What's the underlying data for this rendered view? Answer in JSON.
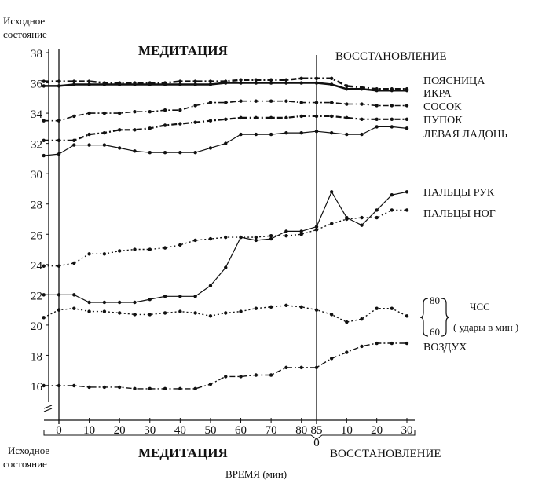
{
  "chart_data": {
    "type": "line",
    "xlabel": "ВРЕМЯ (мин)",
    "ylim": [
      14,
      38
    ],
    "yticks": [
      16,
      18,
      20,
      22,
      24,
      26,
      28,
      30,
      32,
      34,
      36,
      38
    ],
    "phases": {
      "baseline": "Исходное состояние",
      "baseline_line1": "Исходное",
      "baseline_line2": "состояние",
      "meditation": "МЕДИТАЦИЯ",
      "recovery": "ВОССТАНОВЛЕНИЕ"
    },
    "meditation_ticks": [
      0,
      10,
      20,
      30,
      40,
      50,
      60,
      70,
      80,
      85
    ],
    "recovery_ticks": [
      10,
      20,
      30
    ],
    "recovery_zero": "0",
    "timeline": [
      -5,
      0,
      5,
      10,
      15,
      20,
      25,
      30,
      35,
      40,
      45,
      50,
      55,
      60,
      65,
      70,
      75,
      80,
      85,
      90,
      95,
      100,
      105,
      110,
      115
    ],
    "hr_scale": {
      "top": "80",
      "bottom": "60",
      "label": "ЧСС",
      "unit": "( удары в мин )"
    },
    "series": [
      {
        "name": "ПОЯСНИЦА",
        "style": "dashdot",
        "stroke": 2.5,
        "values": [
          36.1,
          36.1,
          36.1,
          36.1,
          36.0,
          36.0,
          36.0,
          36.0,
          36.0,
          36.1,
          36.1,
          36.1,
          36.1,
          36.2,
          36.2,
          36.2,
          36.2,
          36.3,
          36.3,
          36.3,
          35.8,
          35.7,
          35.6,
          35.6,
          35.6
        ]
      },
      {
        "name": "ИКРА",
        "style": "solid",
        "stroke": 2.5,
        "values": [
          35.8,
          35.8,
          35.9,
          35.9,
          35.9,
          35.9,
          35.9,
          35.9,
          35.9,
          35.9,
          35.9,
          35.9,
          36.0,
          36.0,
          36.0,
          36.0,
          36.0,
          36.0,
          36.0,
          35.9,
          35.6,
          35.6,
          35.5,
          35.5,
          35.5
        ]
      },
      {
        "name": "СОСОК",
        "style": "dashdot",
        "stroke": 1.6,
        "values": [
          33.5,
          33.5,
          33.8,
          34.0,
          34.0,
          34.0,
          34.1,
          34.1,
          34.2,
          34.2,
          34.5,
          34.7,
          34.7,
          34.8,
          34.8,
          34.8,
          34.8,
          34.7,
          34.7,
          34.7,
          34.6,
          34.6,
          34.5,
          34.5,
          34.5
        ]
      },
      {
        "name": "ПУПОК",
        "style": "dashdot",
        "stroke": 2.2,
        "values": [
          32.2,
          32.2,
          32.2,
          32.6,
          32.7,
          32.9,
          32.9,
          33.0,
          33.2,
          33.3,
          33.4,
          33.5,
          33.6,
          33.7,
          33.7,
          33.7,
          33.7,
          33.8,
          33.8,
          33.8,
          33.7,
          33.6,
          33.6,
          33.6,
          33.6
        ]
      },
      {
        "name": "ЛЕВАЯ ЛАДОНЬ",
        "style": "solid",
        "stroke": 1.2,
        "values": [
          31.2,
          31.3,
          31.9,
          31.9,
          31.9,
          31.7,
          31.5,
          31.4,
          31.4,
          31.4,
          31.4,
          31.7,
          32.0,
          32.6,
          32.6,
          32.6,
          32.7,
          32.7,
          32.8,
          32.7,
          32.6,
          32.6,
          33.1,
          33.1,
          33.0
        ]
      },
      {
        "name": "ПАЛЬЦЫ РУК",
        "style": "solid",
        "stroke": 1.2,
        "values": [
          22.0,
          22.0,
          22.0,
          21.5,
          21.5,
          21.5,
          21.5,
          21.7,
          21.9,
          21.9,
          21.9,
          22.6,
          23.8,
          25.8,
          25.6,
          25.7,
          26.2,
          26.2,
          26.5,
          28.8,
          27.1,
          26.6,
          27.6,
          28.6,
          28.8
        ]
      },
      {
        "name": "ПАЛЬЦЫ НОГ",
        "style": "dotted",
        "stroke": 1.4,
        "values": [
          23.9,
          23.9,
          24.1,
          24.7,
          24.7,
          24.9,
          25.0,
          25.0,
          25.1,
          25.3,
          25.6,
          25.7,
          25.8,
          25.8,
          25.8,
          25.9,
          25.9,
          26.0,
          26.3,
          26.7,
          27.0,
          27.1,
          27.1,
          27.6,
          27.6
        ]
      },
      {
        "name": "ЧСС",
        "style": "dotted",
        "stroke": 1.4,
        "values": [
          20.5,
          21.0,
          21.1,
          20.9,
          20.9,
          20.8,
          20.7,
          20.7,
          20.8,
          20.9,
          20.8,
          20.6,
          20.8,
          20.9,
          21.1,
          21.2,
          21.3,
          21.2,
          21.0,
          20.7,
          20.2,
          20.4,
          21.1,
          21.1,
          20.6
        ]
      },
      {
        "name": "ВОЗДУХ",
        "style": "dashdot",
        "stroke": 1.4,
        "values": [
          16.0,
          16.0,
          16.0,
          15.9,
          15.9,
          15.9,
          15.8,
          15.8,
          15.8,
          15.8,
          15.8,
          16.1,
          16.6,
          16.6,
          16.7,
          16.7,
          17.2,
          17.2,
          17.2,
          17.8,
          18.2,
          18.6,
          18.8,
          18.8,
          18.8
        ]
      }
    ]
  }
}
